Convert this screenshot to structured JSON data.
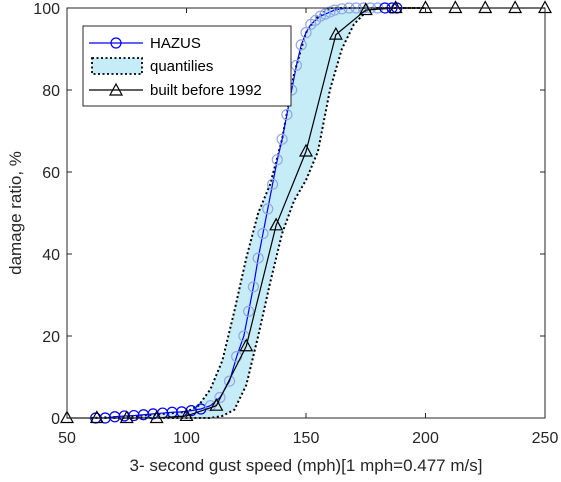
{
  "chart_data": {
    "type": "line",
    "xlabel": "3- second gust speed (mph)[1 mph=0.477 m/s]",
    "ylabel": "damage ratio, %",
    "xlim": [
      50,
      250
    ],
    "ylim": [
      0,
      100
    ],
    "xticks": [
      "50",
      "100",
      "150",
      "200",
      "250"
    ],
    "yticks": [
      "0",
      "20",
      "40",
      "60",
      "80",
      "100"
    ],
    "grid": false,
    "legend_position": "top-left",
    "colors": {
      "hazus_line": "#0000ff",
      "hazus_marker_light": "#8ea8e6",
      "band_fill": "#c6ecf8",
      "band_edge": "#000000",
      "built_line": "#000000"
    },
    "series": [
      {
        "name": "HAZUS",
        "style": "line-circle",
        "x": [
          62,
          66,
          70,
          74,
          78,
          82,
          86,
          90,
          94,
          98,
          102,
          106,
          110,
          114,
          118,
          121,
          124,
          126,
          128,
          130,
          132,
          134,
          136,
          138,
          140,
          142,
          144,
          146,
          148,
          150,
          152,
          154,
          156,
          158,
          160,
          162,
          165,
          168,
          171,
          174,
          177,
          180,
          183,
          186,
          188
        ],
        "y": [
          0,
          0,
          0.3,
          0.5,
          0.6,
          0.8,
          1,
          1.2,
          1.4,
          1.5,
          1.8,
          2.2,
          3,
          5,
          9,
          15,
          20,
          26,
          32,
          39,
          45,
          51,
          57,
          63,
          68,
          74,
          80,
          86,
          91,
          94,
          96,
          97,
          98,
          98.5,
          99,
          99.5,
          99.8,
          100,
          100,
          100,
          100,
          100,
          100,
          100,
          100
        ]
      },
      {
        "name": "quantilies",
        "style": "band",
        "x": [
          60,
          80,
          100,
          105,
          110,
          115,
          120,
          125,
          130,
          135,
          140,
          145,
          150,
          155,
          160,
          165,
          170,
          175,
          180,
          190,
          200
        ],
        "lower": [
          0,
          0,
          0,
          0,
          0,
          0.5,
          2,
          8,
          20,
          33,
          45,
          53,
          58,
          65,
          80,
          90,
          96,
          99,
          100,
          100,
          100
        ],
        "upper": [
          0,
          0.5,
          1.5,
          3,
          7,
          14,
          26,
          39,
          50,
          57,
          68,
          84,
          94,
          98,
          100,
          100,
          100,
          100,
          100,
          100,
          100
        ]
      },
      {
        "name": "built before 1992",
        "style": "line-triangle",
        "x": [
          50,
          62.5,
          75,
          87.5,
          100,
          112.5,
          125,
          137.5,
          150,
          162.5,
          175,
          187.5,
          200,
          212.5,
          225,
          237.5,
          250
        ],
        "y": [
          0,
          0,
          0,
          0,
          0.5,
          3,
          17.5,
          47,
          65,
          93.5,
          99.5,
          100,
          100,
          100,
          100,
          100,
          100
        ]
      }
    ]
  }
}
